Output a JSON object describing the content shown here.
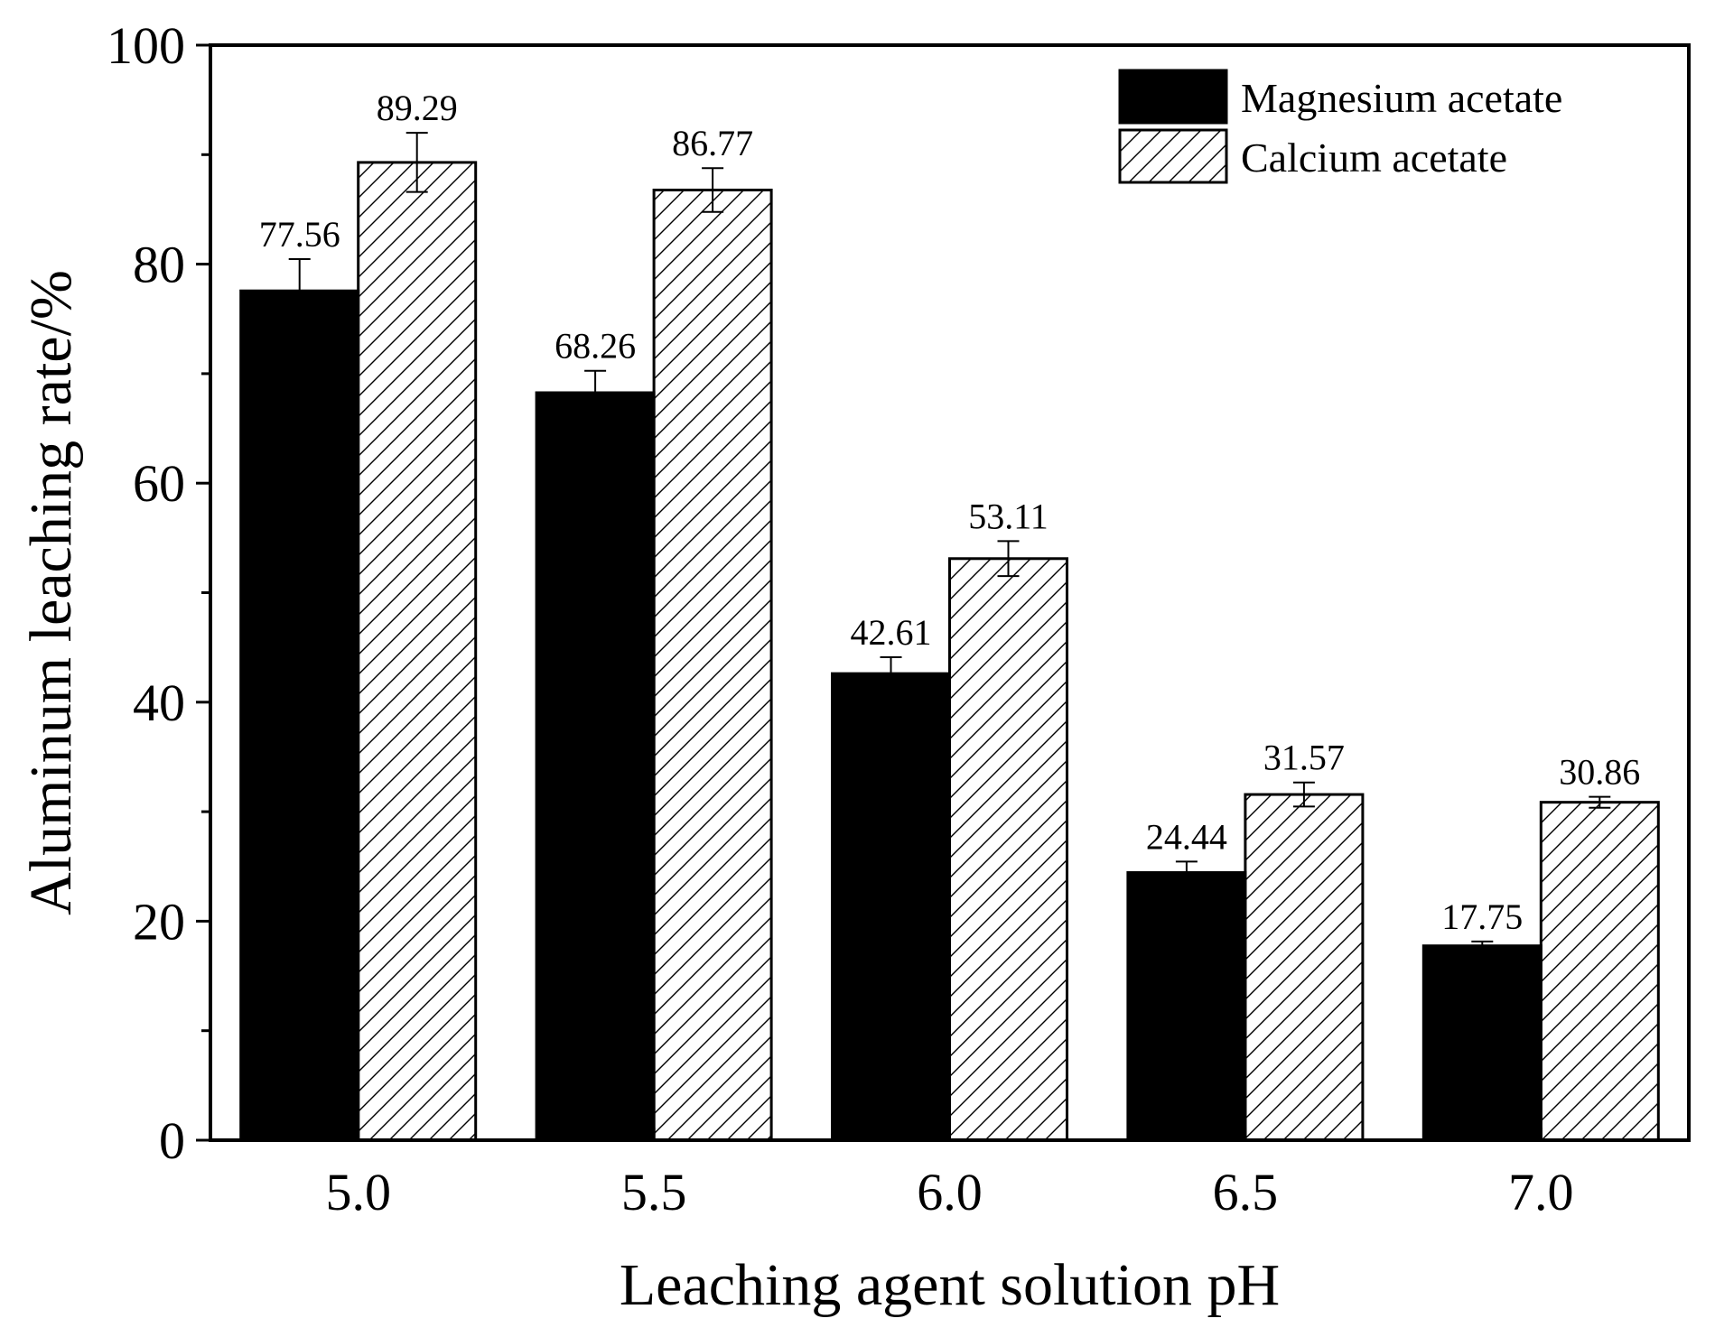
{
  "chart_data": {
    "type": "bar",
    "xlabel": "Leaching agent solution pH",
    "ylabel": "Aluminum leaching rate/%",
    "ylim": [
      0,
      100
    ],
    "yticks": [
      0,
      20,
      40,
      60,
      80,
      100
    ],
    "categories": [
      "5.0",
      "5.5",
      "6.0",
      "6.5",
      "7.0"
    ],
    "series": [
      {
        "name": "Magnesium acetate",
        "fill": "solid",
        "color": "#000000",
        "values": [
          77.56,
          68.26,
          42.61,
          24.44,
          17.75
        ],
        "labels": [
          "77.56",
          "68.26",
          "42.61",
          "24.44",
          "17.75"
        ],
        "errors": [
          2.9,
          2.0,
          1.5,
          1.0,
          0.4
        ]
      },
      {
        "name": "Calcium acetate",
        "fill": "hatched",
        "color": "#000000",
        "values": [
          89.29,
          86.77,
          53.11,
          31.57,
          30.86
        ],
        "labels": [
          "89.29",
          "86.77",
          "53.11",
          "31.57",
          "30.86"
        ],
        "errors": [
          2.7,
          2.0,
          1.6,
          1.1,
          0.5
        ]
      }
    ],
    "legend": {
      "position": "top-right"
    },
    "grid": false
  }
}
